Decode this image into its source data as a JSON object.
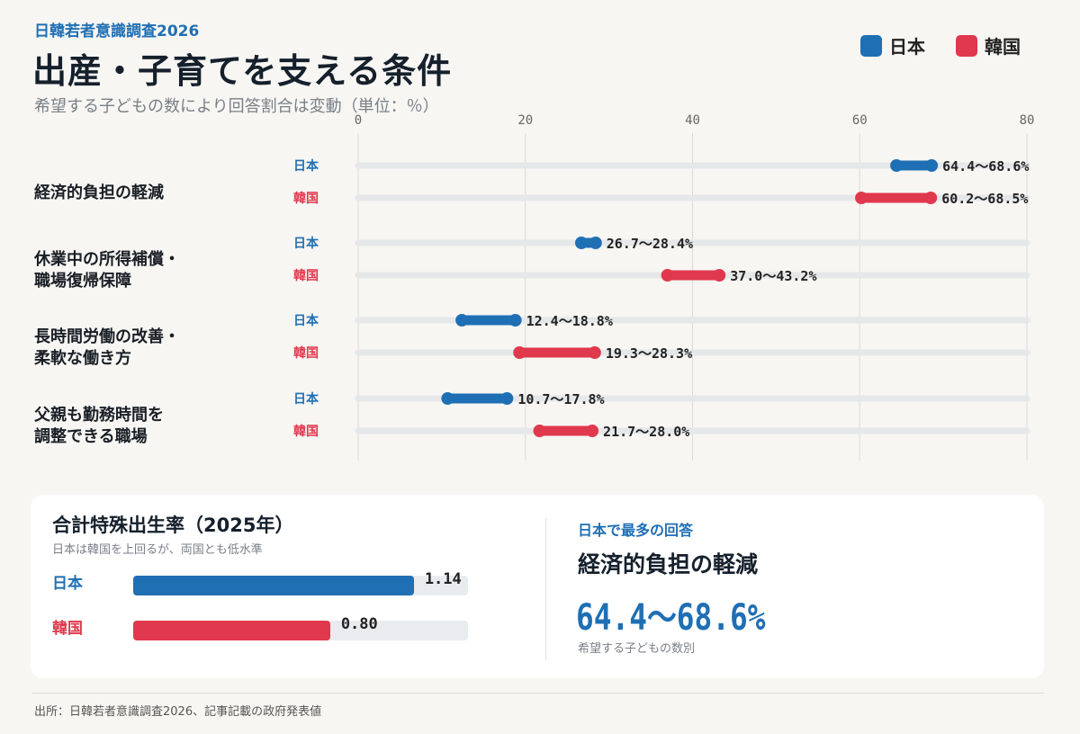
{
  "header": {
    "kicker": "日韓若者意識調査2026",
    "title": "出産・子育てを支える条件",
    "subtitle": "希望する子どもの数により回答割合は変動（単位：％）"
  },
  "legend": [
    {
      "label": "日本",
      "color": "#1f6fb4"
    },
    {
      "label": "韓国",
      "color": "#e0384d"
    }
  ],
  "chart_data": {
    "type": "range-bar",
    "xlim": [
      0,
      80
    ],
    "x_ticks": [
      0,
      20,
      40,
      60,
      80
    ],
    "x_tick_labels": [
      "0",
      "20",
      "40",
      "60",
      "80"
    ],
    "grid": true,
    "series": [
      {
        "name": "日本",
        "color": "#1f6fb4"
      },
      {
        "name": "韓国",
        "color": "#e0384d"
      }
    ],
    "categories": [
      {
        "label_lines": [
          "経済的負担の軽減"
        ],
        "ranges": [
          {
            "country": "日本",
            "low": 64.4,
            "high": 68.6,
            "label": "64.4〜68.6%"
          },
          {
            "country": "韓国",
            "low": 60.2,
            "high": 68.5,
            "label": "60.2〜68.5%"
          }
        ]
      },
      {
        "label_lines": [
          "休業中の所得補償・",
          "職場復帰保障"
        ],
        "ranges": [
          {
            "country": "日本",
            "low": 26.7,
            "high": 28.4,
            "label": "26.7〜28.4%"
          },
          {
            "country": "韓国",
            "low": 37.0,
            "high": 43.2,
            "label": "37.0〜43.2%"
          }
        ]
      },
      {
        "label_lines": [
          "長時間労働の改善・",
          "柔軟な働き方"
        ],
        "ranges": [
          {
            "country": "日本",
            "low": 12.4,
            "high": 18.8,
            "label": "12.4〜18.8%"
          },
          {
            "country": "韓国",
            "low": 19.3,
            "high": 28.3,
            "label": "19.3〜28.3%"
          }
        ]
      },
      {
        "label_lines": [
          "父親も勤務時間を",
          "調整できる職場"
        ],
        "ranges": [
          {
            "country": "日本",
            "low": 10.7,
            "high": 17.8,
            "label": "10.7〜17.8%"
          },
          {
            "country": "韓国",
            "low": 21.7,
            "high": 28.0,
            "label": "21.7〜28.0%"
          }
        ]
      }
    ]
  },
  "tfr": {
    "title": "合計特殊出生率（2025年）",
    "subtitle": "日本は韓国を上回るが、両国とも低水準",
    "rows": [
      {
        "country": "日本",
        "value": 1.14,
        "value_label": "1.14",
        "color": "#1f6fb4"
      },
      {
        "country": "韓国",
        "value": 0.8,
        "value_label": "0.80",
        "color": "#e0384d"
      }
    ]
  },
  "highlight": {
    "kicker": "日本で最多の回答",
    "item": "経済的負担の軽減",
    "value": "64.4〜68.6%",
    "note": "希望する子どもの数別"
  },
  "source": "出所：日韓若者意識調査2026、記事記載の政府発表値"
}
